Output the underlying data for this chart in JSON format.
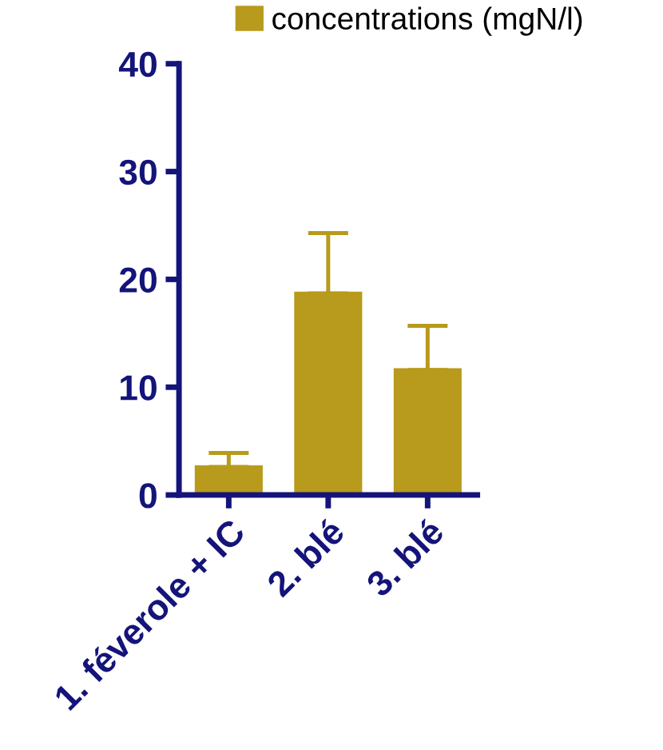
{
  "chart_data": {
    "type": "bar",
    "categories": [
      "1. féverole + IC",
      "2. blé",
      "3. blé"
    ],
    "series": [
      {
        "name": "concentrations (mgN/l)",
        "color": "#b89a1c",
        "values": [
          2.6,
          18.7,
          11.6
        ],
        "errors": [
          [
            2.6,
            3.9
          ],
          [
            18.7,
            24.3
          ],
          [
            11.6,
            15.7
          ]
        ]
      }
    ],
    "ylim": [
      0,
      40
    ],
    "yticks": [
      0,
      10,
      20,
      30,
      40
    ],
    "grid": false,
    "legend": "top right"
  }
}
